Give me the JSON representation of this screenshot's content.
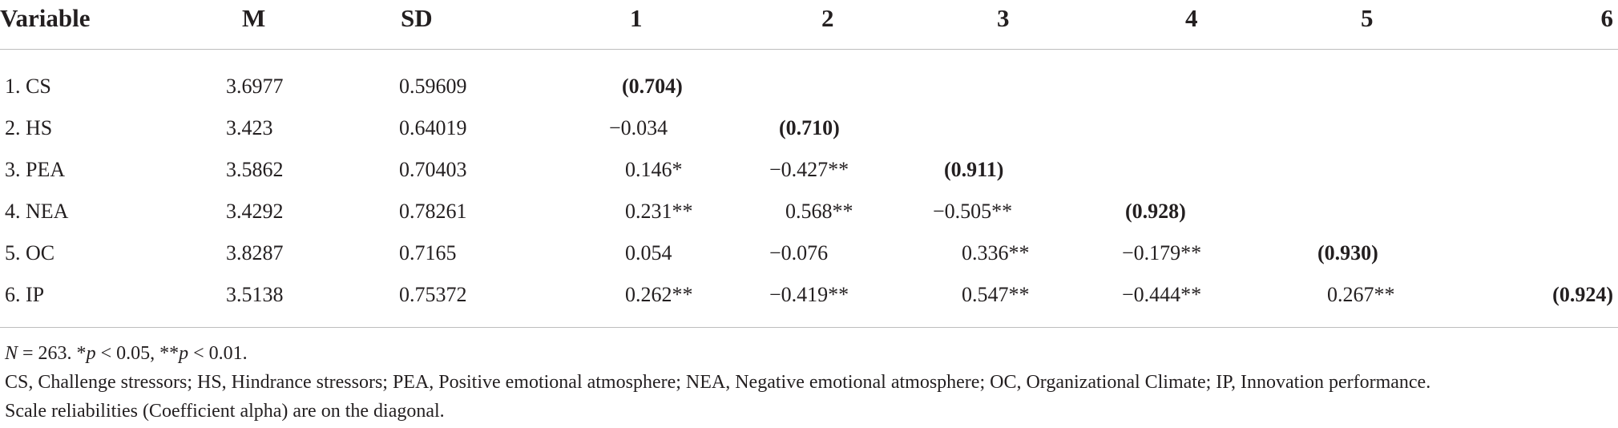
{
  "table": {
    "headers": [
      "Variable",
      "M",
      "SD",
      "1",
      "2",
      "3",
      "4",
      "5",
      "6"
    ],
    "rows": [
      {
        "variable": "1. CS",
        "m": "3.6977",
        "sd": "0.59609",
        "c1": "(0.704)",
        "c2": "",
        "c3": "",
        "c4": "",
        "c5": "",
        "c6": ""
      },
      {
        "variable": "2. HS",
        "m": "3.423",
        "sd": "0.64019",
        "c1": "−0.034",
        "c2": "(0.710)",
        "c3": "",
        "c4": "",
        "c5": "",
        "c6": ""
      },
      {
        "variable": "3. PEA",
        "m": "3.5862",
        "sd": "0.70403",
        "c1": "0.146*",
        "c2": "−0.427**",
        "c3": "(0.911)",
        "c4": "",
        "c5": "",
        "c6": ""
      },
      {
        "variable": "4. NEA",
        "m": "3.4292",
        "sd": "0.78261",
        "c1": "0.231**",
        "c2": "0.568**",
        "c3": "−0.505**",
        "c4": "(0.928)",
        "c5": "",
        "c6": ""
      },
      {
        "variable": "5. OC",
        "m": "3.8287",
        "sd": "0.7165",
        "c1": "0.054",
        "c2": "−0.076",
        "c3": "0.336**",
        "c4": "−0.179**",
        "c5": "(0.930)",
        "c6": ""
      },
      {
        "variable": "6. IP",
        "m": "3.5138",
        "sd": "0.75372",
        "c1": "0.262**",
        "c2": "−0.419**",
        "c3": "0.547**",
        "c4": "−0.444**",
        "c5": "0.267**",
        "c6": "(0.924)"
      }
    ]
  },
  "notes": {
    "n_label": "N",
    "n_text": " = 263. *",
    "p1_label": "p",
    "p1_text": " < 0.05, **",
    "p2_label": "p",
    "p2_text": " < 0.01.",
    "abbreviations": "CS, Challenge stressors; HS, Hindrance stressors; PEA, Positive emotional atmosphere; NEA, Negative emotional atmosphere; OC, Organizational Climate; IP, Innovation performance.",
    "reliability": "Scale reliabilities (Coefficient alpha) are on the diagonal."
  }
}
